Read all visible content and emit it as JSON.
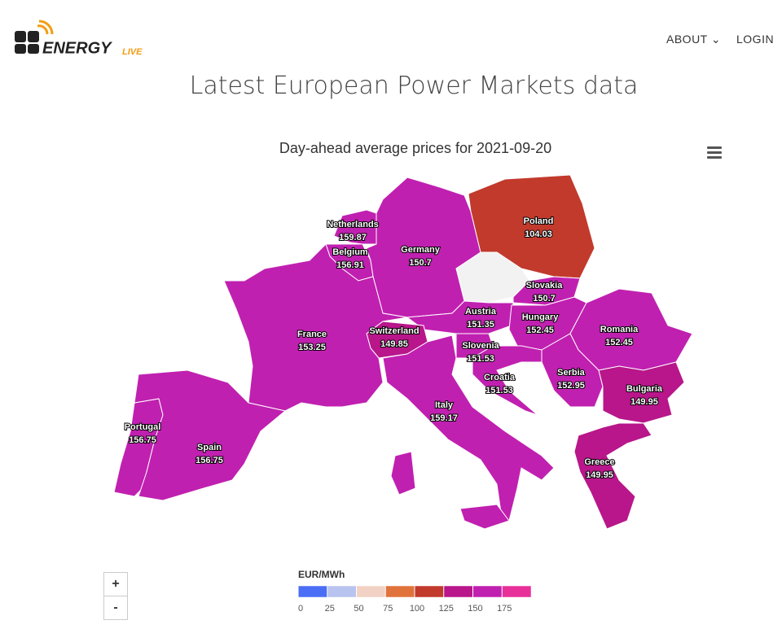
{
  "header": {
    "logo": "ENERGY",
    "logo_accent": "LIVE",
    "nav": [
      "ABOUT",
      "LOGIN"
    ]
  },
  "page_title": "Latest European Power Markets data",
  "chart_data": {
    "type": "map",
    "title": "Day-ahead average prices for 2021-09-20",
    "regions": [
      {
        "name": "Netherlands",
        "value": 159.87
      },
      {
        "name": "Belgium",
        "value": 156.91
      },
      {
        "name": "Germany",
        "value": 150.7
      },
      {
        "name": "Poland",
        "value": 104.03
      },
      {
        "name": "Slovakia",
        "value": 150.7
      },
      {
        "name": "Austria",
        "value": 151.35
      },
      {
        "name": "Hungary",
        "value": 152.45
      },
      {
        "name": "Romania",
        "value": 152.45
      },
      {
        "name": "Switzerland",
        "value": 149.85
      },
      {
        "name": "France",
        "value": 153.25
      },
      {
        "name": "Slovenia",
        "value": 151.53
      },
      {
        "name": "Croatia",
        "value": 151.53
      },
      {
        "name": "Serbia",
        "value": 152.95
      },
      {
        "name": "Bulgaria",
        "value": 149.95
      },
      {
        "name": "Italy",
        "value": 159.17
      },
      {
        "name": "Portugal",
        "value": 156.75
      },
      {
        "name": "Spain",
        "value": 156.75
      },
      {
        "name": "Greece",
        "value": 149.95
      }
    ],
    "colorbar": {
      "title": "EUR/MWh",
      "lim": [
        0,
        200
      ],
      "ticks": [
        0,
        25,
        50,
        75,
        100,
        125,
        150,
        175
      ],
      "colors": [
        "#4a6ef5",
        "#b9c3ef",
        "#f2d2c4",
        "#e0733c",
        "#c23a2c",
        "#b8168a",
        "#c020b0",
        "#e8309a"
      ]
    },
    "zoom_controls": [
      "+",
      "-"
    ]
  }
}
